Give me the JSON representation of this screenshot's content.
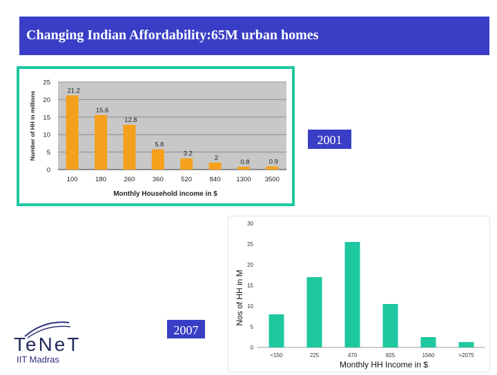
{
  "slide": {
    "title": "Changing Indian Affordability:65M urban homes"
  },
  "labels": {
    "year_2001": "2001",
    "year_2007": "2007"
  },
  "logo": {
    "name": "TeNeT",
    "institute": "IIT Madras"
  },
  "colors": {
    "title_bg": "#3a3ec6",
    "frame_border": "#1dc8a0",
    "bar_2001": "#f5a01d",
    "bar_2007": "#1dc8a0"
  },
  "chart_data": [
    {
      "type": "bar",
      "categories": [
        "100",
        "180",
        "260",
        "360",
        "520",
        "840",
        "1300",
        "3500"
      ],
      "values": [
        21.2,
        15.6,
        12.8,
        5.8,
        3.2,
        2,
        0.8,
        0.9
      ],
      "value_labels": [
        "21.2",
        "15.6",
        "12.8",
        "5.8",
        "3.2",
        "2",
        "0.8",
        "0.9"
      ],
      "xlabel": "Monthly Household income in $",
      "ylabel": "Number of HH in millions",
      "ylim": [
        0,
        25
      ],
      "yticks": [
        "0",
        "5",
        "10",
        "15",
        "20",
        "25"
      ],
      "grid": true,
      "color": "#f5a01d"
    },
    {
      "type": "bar",
      "categories": [
        "<150",
        "225",
        "470",
        "825",
        "1560",
        ">2075"
      ],
      "values": [
        8,
        17,
        25.5,
        10.5,
        2.5,
        1.3
      ],
      "xlabel": "Monthly HH Income in $",
      "ylabel": "Nos of HH in M",
      "ylim": [
        0,
        30
      ],
      "yticks": [
        "0",
        "5",
        "10",
        "15",
        "20",
        "25",
        "30"
      ],
      "grid": false,
      "color": "#1dc8a0"
    }
  ]
}
